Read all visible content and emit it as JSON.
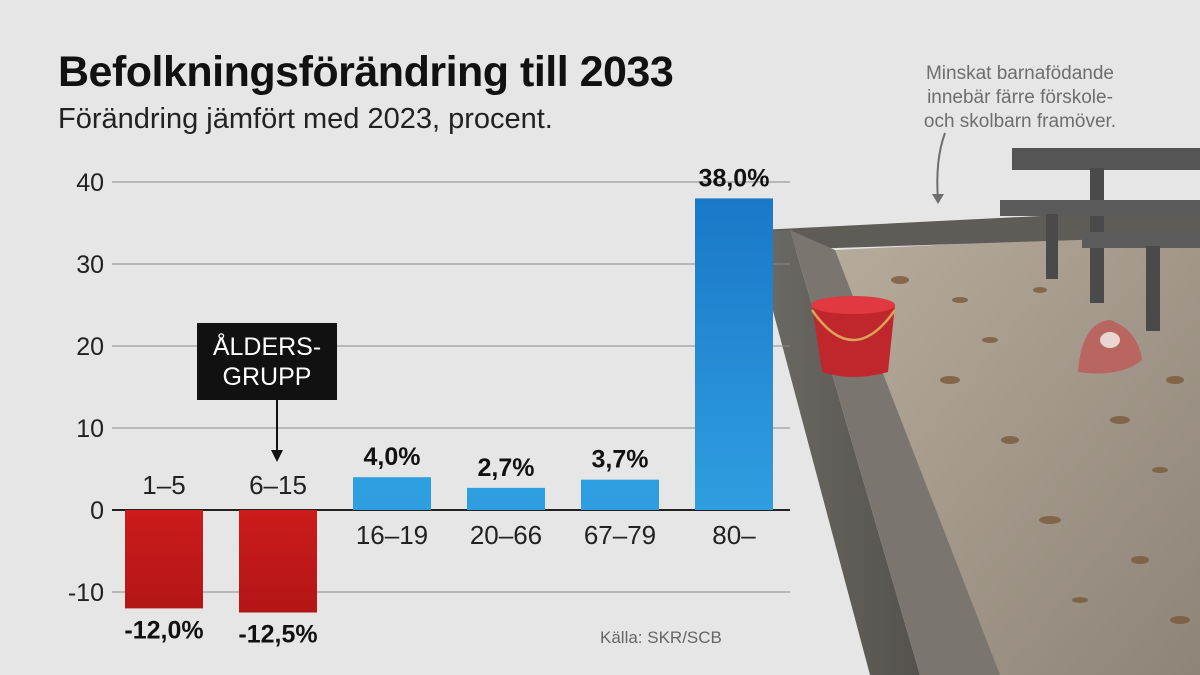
{
  "title": "Befolkningsförändring till 2033",
  "subtitle": "Förändring jämfört med 2023, procent.",
  "note": [
    "Minskat barnafödande",
    "innebär färre förskole-",
    "och skolbarn framöver."
  ],
  "source": "Källa: SKR/SCB",
  "callout": [
    "ÅLDERS-",
    "GRUPP"
  ],
  "colors": {
    "negative": "#cc1b1b",
    "positive": "#2d9fe0",
    "highlight": "#1a78c8",
    "grid": "#8a8a8a",
    "background": "#e6e6e6"
  },
  "chart_data": {
    "type": "bar",
    "categories": [
      "1–5",
      "6–15",
      "16–19",
      "20–66",
      "67–79",
      "80–"
    ],
    "values": [
      -12.0,
      -12.5,
      4.0,
      2.7,
      3.7,
      38.0
    ],
    "value_labels": [
      "-12,0%",
      "-12,5%",
      "4,0%",
      "2,7%",
      "3,7%",
      "38,0%"
    ],
    "title": "Befolkningsförändring till 2033",
    "subtitle": "Förändring jämfört med 2023, procent.",
    "y_ticks": [
      "40",
      "30",
      "20",
      "10",
      "0",
      "-10"
    ],
    "ylim": [
      -10,
      40
    ],
    "grid": true
  }
}
